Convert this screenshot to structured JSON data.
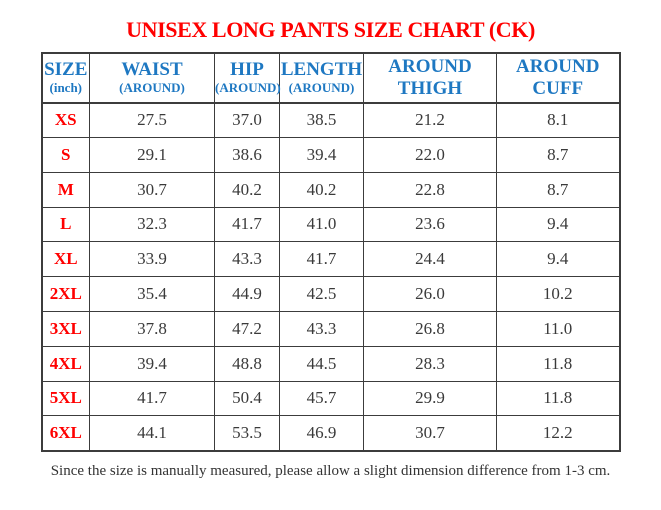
{
  "page": {
    "title": "UNISEX LONG PANTS SIZE CHART (CK)",
    "footnote": "Since the size is manually measured, please allow a slight dimension difference from 1-3 cm."
  },
  "colors": {
    "title_red": "#ff0000",
    "header_blue": "#1e78c2",
    "size_label_red": "#ff0000",
    "value_text": "#3a3a3a",
    "table_border": "#3c3c3c",
    "background": "#ffffff"
  },
  "table": {
    "unit": "inch",
    "columns": [
      {
        "id": "size",
        "line1": "SIZE",
        "line2": "(inch)",
        "line2_small": true
      },
      {
        "id": "waist",
        "line1": "WAIST",
        "line2": "(AROUND)",
        "line2_small": true
      },
      {
        "id": "hip",
        "line1": "HIP",
        "line2": "(AROUND)",
        "line2_small": true
      },
      {
        "id": "length",
        "line1": "LENGTH",
        "line2": "(AROUND)",
        "line2_small": true
      },
      {
        "id": "around-thigh",
        "line1": "AROUND",
        "line2": "THIGH",
        "line2_small": false
      },
      {
        "id": "around-cuff",
        "line1": "AROUND",
        "line2": "CUFF",
        "line2_small": false
      }
    ],
    "rows": [
      {
        "size": "XS",
        "values": [
          "27.5",
          "37.0",
          "38.5",
          "21.2",
          "8.1"
        ]
      },
      {
        "size": "S",
        "values": [
          "29.1",
          "38.6",
          "39.4",
          "22.0",
          "8.7"
        ]
      },
      {
        "size": "M",
        "values": [
          "30.7",
          "40.2",
          "40.2",
          "22.8",
          "8.7"
        ]
      },
      {
        "size": "L",
        "values": [
          "32.3",
          "41.7",
          "41.0",
          "23.6",
          "9.4"
        ]
      },
      {
        "size": "XL",
        "values": [
          "33.9",
          "43.3",
          "41.7",
          "24.4",
          "9.4"
        ]
      },
      {
        "size": "2XL",
        "values": [
          "35.4",
          "44.9",
          "42.5",
          "26.0",
          "10.2"
        ]
      },
      {
        "size": "3XL",
        "values": [
          "37.8",
          "47.2",
          "43.3",
          "26.8",
          "11.0"
        ]
      },
      {
        "size": "4XL",
        "values": [
          "39.4",
          "48.8",
          "44.5",
          "28.3",
          "11.8"
        ]
      },
      {
        "size": "5XL",
        "values": [
          "41.7",
          "50.4",
          "45.7",
          "29.9",
          "11.8"
        ]
      },
      {
        "size": "6XL",
        "values": [
          "44.1",
          "53.5",
          "46.9",
          "30.7",
          "12.2"
        ]
      }
    ]
  }
}
